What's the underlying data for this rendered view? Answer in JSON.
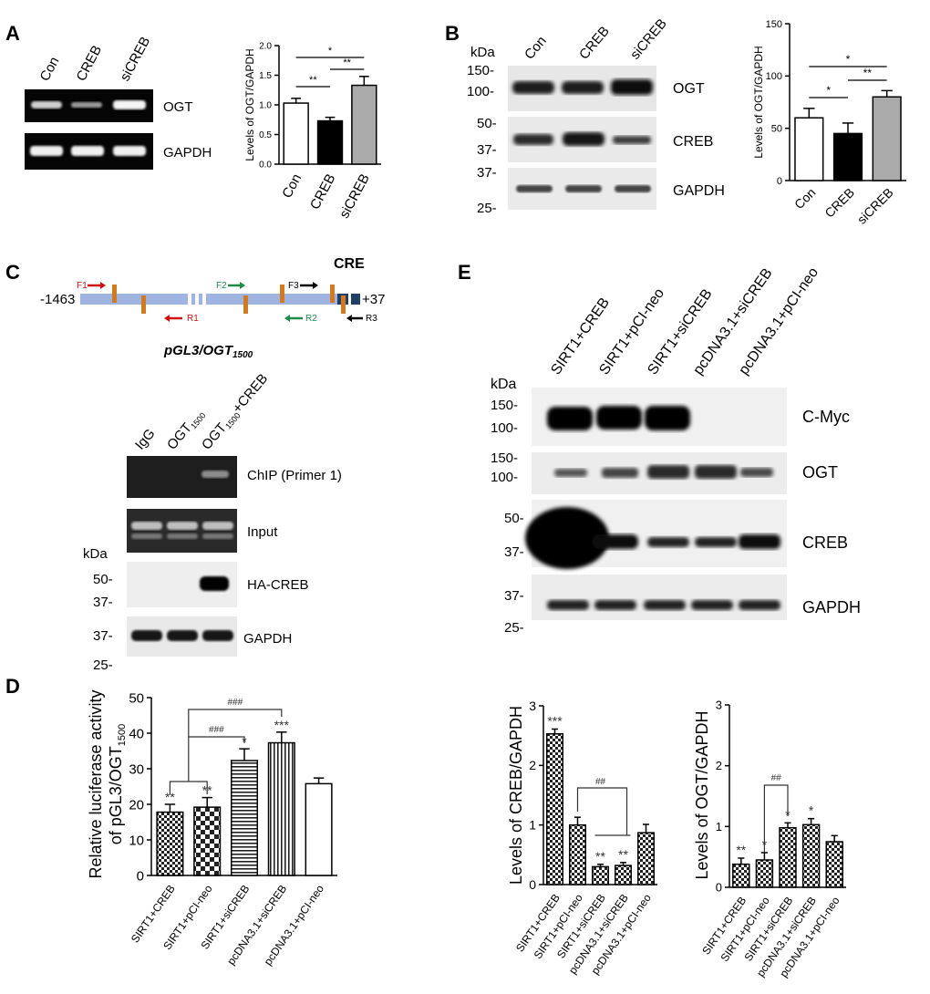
{
  "panels": {
    "A": {
      "letter": "A",
      "lanes": [
        "Con",
        "CREB",
        "siCREB"
      ],
      "blots": [
        "OGT",
        "GAPDH"
      ]
    },
    "B": {
      "letter": "B",
      "kda": "kDa",
      "lanes": [
        "Con",
        "CREB",
        "siCREB"
      ],
      "blots": [
        "OGT",
        "CREB",
        "GAPDH"
      ],
      "markers": [
        "150-",
        "100-",
        "50-",
        "37-",
        "37-",
        "25-"
      ]
    },
    "C": {
      "letter": "C",
      "cre": "CRE",
      "left_pos": "-1463",
      "right_pos": "+37",
      "primers": [
        "F1",
        "R1",
        "F2",
        "R2",
        "F3",
        "R3"
      ],
      "construct": "pGL3/OGT",
      "construct_sub": "1500",
      "lanes": [
        "IgG",
        "OGT",
        "OGT"
      ],
      "lane_subs": [
        "",
        "1500",
        "1500"
      ],
      "lane3_suffix": "+CREB",
      "blots": [
        "ChIP (Primer 1)",
        "Input",
        "HA-CREB",
        "GAPDH"
      ],
      "kda": "kDa",
      "markers": [
        "50-",
        "37-",
        "37-",
        "25-"
      ]
    },
    "D": {
      "letter": "D"
    },
    "E": {
      "letter": "E",
      "kda": "kDa",
      "lanes": [
        "SIRT1+CREB",
        "SIRT1+pCI-neo",
        "SIRT1+siCREB",
        "pcDNA3.1+siCREB",
        "pcDNA3.1+pCI-neo"
      ],
      "blots": [
        "C-Myc",
        "OGT",
        "CREB",
        "GAPDH"
      ],
      "markers": [
        "150-",
        "100-",
        "150-",
        "100-",
        "50-",
        "37-",
        "37-",
        "25-"
      ]
    }
  },
  "chart_data": [
    {
      "id": "A",
      "type": "bar",
      "categories": [
        "Con",
        "CREB",
        "siCREB"
      ],
      "values": [
        1.03,
        0.73,
        1.33
      ],
      "errors": [
        0.08,
        0.06,
        0.15
      ],
      "ylabel": "Levels of OGT/GAPDH",
      "ylim": [
        0,
        2.0
      ],
      "yticks": [
        "0.0",
        "0.5",
        "1.0",
        "1.5",
        "2.0"
      ],
      "fills": [
        "#ffffff",
        "#000000",
        "#aaaaaa"
      ],
      "annotations": [
        "**",
        "**",
        "*"
      ]
    },
    {
      "id": "B",
      "type": "bar",
      "categories": [
        "Con",
        "CREB",
        "siCREB"
      ],
      "values": [
        60,
        45,
        80
      ],
      "errors": [
        9,
        10,
        6
      ],
      "ylabel": "Levels of OGT/GAPDH",
      "ylim": [
        0,
        150
      ],
      "yticks": [
        "0",
        "50",
        "100",
        "150"
      ],
      "fills": [
        "#ffffff",
        "#000000",
        "#aaaaaa"
      ],
      "annotations": [
        "*",
        "**",
        "*"
      ]
    },
    {
      "id": "D",
      "type": "bar",
      "categories": [
        "SIRT1+CREB",
        "SIRT1+pCI-neo",
        "SIRT1+siCREB",
        "pcDNA3.1+siCREB",
        "pcDNA3.1+pCI-neo"
      ],
      "values": [
        17.8,
        19.2,
        32.3,
        37.3,
        25.8
      ],
      "errors": [
        2.2,
        2.7,
        3.3,
        3.0,
        1.6
      ],
      "ylabel_line1": "Relative luciferase activity",
      "ylabel_line2": "of pGL3/OGT",
      "ylabel_sub": "1500",
      "ylim": [
        0,
        50
      ],
      "yticks": [
        "0",
        "10",
        "20",
        "30",
        "40",
        "50"
      ],
      "bar_marks": [
        "**",
        "**",
        "*",
        "***",
        ""
      ],
      "hash_marks": [
        "###",
        "###"
      ]
    },
    {
      "id": "E-CREB",
      "type": "bar",
      "categories": [
        "SIRT1+CREB",
        "SIRT1+pCI-neo",
        "SIRT1+siCREB",
        "pcDNA3.1+siCREB",
        "pcDNA3.1+pCI-neo"
      ],
      "values": [
        2.53,
        1.0,
        0.3,
        0.32,
        0.87
      ],
      "errors": [
        0.08,
        0.13,
        0.04,
        0.05,
        0.14
      ],
      "ylabel": "Levels of CREB/GAPDH",
      "ylim": [
        0,
        3
      ],
      "yticks": [
        "0",
        "1",
        "2",
        "3"
      ],
      "bar_marks": [
        "***",
        "",
        "**",
        "**",
        ""
      ],
      "hash_mark": "##"
    },
    {
      "id": "E-OGT",
      "type": "bar",
      "categories": [
        "SIRT1+CREB",
        "SIRT1+pCI-neo",
        "SIRT1+siCREB",
        "pcDNA3.1+siCREB",
        "pcDNA3.1+pCI-neo"
      ],
      "values": [
        0.38,
        0.45,
        0.98,
        1.03,
        0.75
      ],
      "errors": [
        0.1,
        0.12,
        0.08,
        0.1,
        0.1
      ],
      "ylabel": "Levels of OGT/GAPDH",
      "ylim": [
        0,
        3
      ],
      "yticks": [
        "0",
        "1",
        "2",
        "3"
      ],
      "bar_marks": [
        "**",
        "*",
        "*",
        "*",
        ""
      ],
      "hash_mark": "##"
    }
  ]
}
